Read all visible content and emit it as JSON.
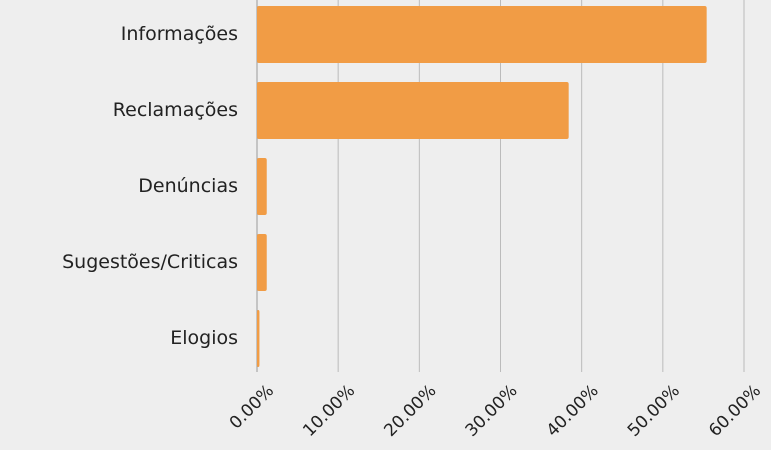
{
  "chart_data": {
    "type": "barh",
    "categories": [
      "Informações",
      "Reclamações",
      "Denúncias",
      "Sugestões/Criticas",
      "Elogios"
    ],
    "values": [
      55.4,
      38.4,
      1.2,
      1.2,
      0.3
    ],
    "color": "#f19c45",
    "xlim": [
      0,
      60
    ],
    "xticks": [
      {
        "value": 0,
        "label": "0.00%"
      },
      {
        "value": 10,
        "label": "10.00%"
      },
      {
        "value": 20,
        "label": "20.00%"
      },
      {
        "value": 30,
        "label": "30.00%"
      },
      {
        "value": 40,
        "label": "40.00%"
      },
      {
        "value": 50,
        "label": "50.00%"
      },
      {
        "value": 60,
        "label": "60.00%"
      }
    ],
    "grid": true
  }
}
